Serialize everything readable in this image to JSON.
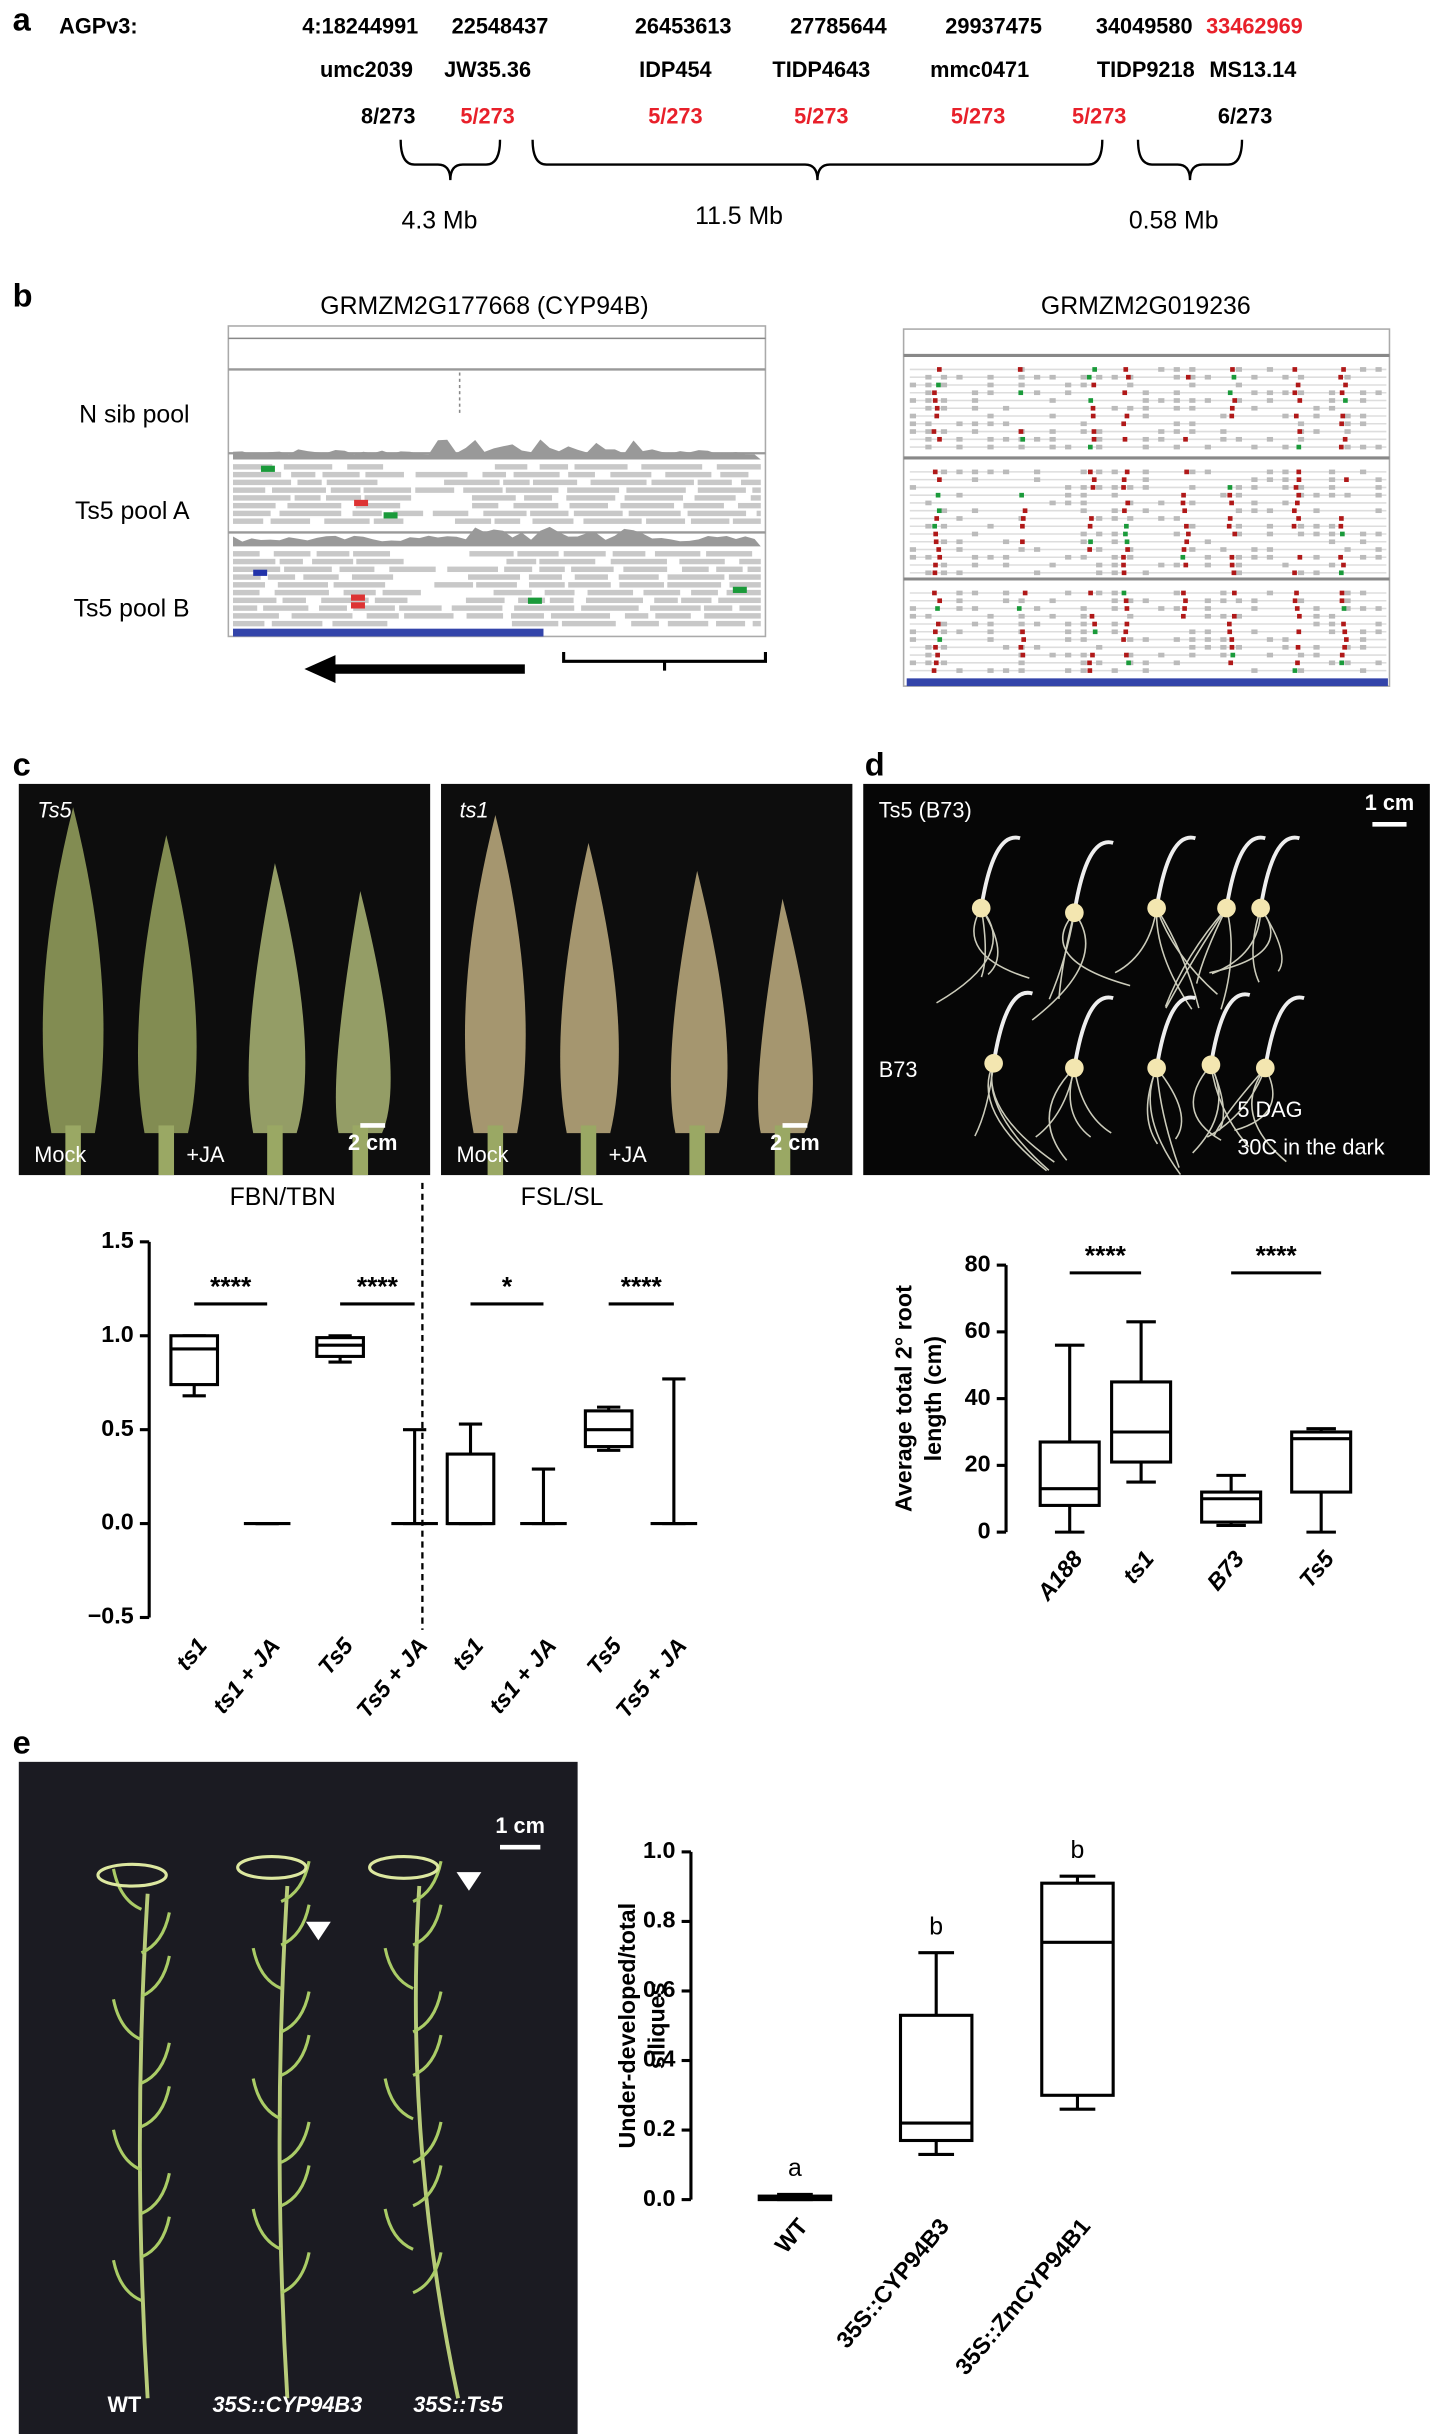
{
  "panel_a": {
    "label": "a",
    "assembly": "AGPv3:",
    "markers": [
      {
        "position": "4:18244991",
        "name": "umc2039",
        "recombinants": "8/273",
        "position_color": "#000000",
        "recombinants_color": "#000000"
      },
      {
        "position": "22548437",
        "name": "JW35.36",
        "recombinants": "5/273",
        "position_color": "#000000",
        "recombinants_color": "#e8202a"
      },
      {
        "position": "26453613",
        "name": "IDP454",
        "recombinants": "5/273",
        "position_color": "#000000",
        "recombinants_color": "#e8202a"
      },
      {
        "position": "27785644",
        "name": "TIDP4643",
        "recombinants": "5/273",
        "position_color": "#000000",
        "recombinants_color": "#e8202a"
      },
      {
        "position": "29937475",
        "name": "mmc0471",
        "recombinants": "5/273",
        "position_color": "#000000",
        "recombinants_color": "#e8202a"
      },
      {
        "position": "34049580",
        "name": "TIDP9218",
        "recombinants": "5/273",
        "position_color": "#000000",
        "recombinants_color": "#e8202a"
      },
      {
        "position": "33462969",
        "name": "MS13.14",
        "recombinants": "6/273",
        "position_color": "#e8202a",
        "recombinants_color": "#000000"
      }
    ],
    "intervals": [
      "4.3 Mb",
      "11.5 Mb",
      "0.58 Mb"
    ]
  },
  "panel_b": {
    "label": "b",
    "genes": [
      "GRMZM2G177668 (CYP94B)",
      "GRMZM2G019236"
    ],
    "tracks": [
      "N sib pool",
      "Ts5 pool A",
      "Ts5 pool B"
    ]
  },
  "panel_c": {
    "label": "c",
    "photos": [
      {
        "genotype": "Ts5",
        "treatments": [
          "Mock",
          "+JA"
        ],
        "scale_bar": "2 cm"
      },
      {
        "genotype": "ts1",
        "treatments": [
          "Mock",
          "+JA"
        ],
        "scale_bar": "2 cm"
      }
    ]
  },
  "panel_d": {
    "label": "d",
    "photo": {
      "genotype": "Ts5 (B73)",
      "scale_bar": "1 cm",
      "control": "B73",
      "notes": [
        "5 DAG",
        "30C in the dark"
      ]
    }
  },
  "panel_e": {
    "label": "e",
    "photo": {
      "scale_bar": "1 cm",
      "plants": [
        "WT",
        "35S::CYP94B3",
        "35S::Ts5"
      ]
    }
  },
  "chart_data": [
    {
      "type": "box",
      "ylim": [
        -0.5,
        1.5
      ],
      "yticks": [
        {
          "value": -0.5,
          "label": "−0.5"
        },
        {
          "value": 0,
          "label": "0.0"
        },
        0.5,
        {
          "value": 1,
          "label": "1.0"
        },
        1.5
      ],
      "groups": [
        {
          "title": "FBN/TBN",
          "categories": [
            "ts1",
            "ts1 + JA",
            "Ts5",
            "Ts5 + JA"
          ],
          "values": [
            {
              "min": 0.68,
              "q1": 0.74,
              "median": 0.93,
              "q3": 1.0,
              "max": 1.0
            },
            {
              "min": 0,
              "q1": 0,
              "median": 0,
              "q3": 0,
              "max": 0
            },
            {
              "min": 0.86,
              "q1": 0.89,
              "median": 0.95,
              "q3": 0.99,
              "max": 1.0
            },
            {
              "min": 0,
              "q1": 0,
              "median": 0,
              "q3": 0,
              "max": 0.5
            }
          ],
          "significance": [
            {
              "label": "****",
              "between": [
                "ts1",
                "ts1 + JA"
              ]
            },
            {
              "label": "****",
              "between": [
                "Ts5",
                "Ts5 + JA"
              ]
            }
          ]
        },
        {
          "title": "FSL/SL",
          "categories": [
            "ts1",
            "ts1 + JA",
            "Ts5",
            "Ts5 + JA"
          ],
          "values": [
            {
              "min": 0,
              "q1": 0,
              "median": 0,
              "q3": 0.37,
              "max": 0.53
            },
            {
              "min": 0,
              "q1": 0,
              "median": 0,
              "q3": 0,
              "max": 0.29
            },
            {
              "min": 0.39,
              "q1": 0.41,
              "median": 0.5,
              "q3": 0.6,
              "max": 0.62
            },
            {
              "min": 0,
              "q1": 0,
              "median": 0,
              "q3": 0,
              "max": 0.77
            }
          ],
          "significance": [
            {
              "label": "*",
              "between": [
                "ts1",
                "ts1 + JA"
              ]
            },
            {
              "label": "****",
              "between": [
                "Ts5",
                "Ts5 + JA"
              ]
            }
          ]
        }
      ]
    },
    {
      "type": "box",
      "ylabel_lines": [
        "Average total 2° root",
        "length (cm)"
      ],
      "ylim": [
        0,
        80
      ],
      "yticks": [
        0,
        20,
        40,
        60,
        80
      ],
      "categories": [
        "A188",
        "ts1",
        "B73",
        "Ts5"
      ],
      "values": [
        {
          "min": 0,
          "q1": 8,
          "median": 13,
          "q3": 27,
          "max": 56
        },
        {
          "min": 15,
          "q1": 21,
          "median": 30,
          "q3": 45,
          "max": 63
        },
        {
          "min": 2,
          "q1": 3,
          "median": 10,
          "q3": 12,
          "max": 17
        },
        {
          "min": 0,
          "q1": 12,
          "median": 28,
          "q3": 30,
          "max": 31
        }
      ],
      "significance": [
        {
          "label": "****",
          "between": [
            "A188",
            "ts1"
          ]
        },
        {
          "label": "****",
          "between": [
            "B73",
            "Ts5"
          ]
        }
      ]
    },
    {
      "type": "box",
      "ylabel_lines": [
        "Under-developed/total",
        "siliques"
      ],
      "ylim": [
        0,
        1
      ],
      "yticks": [
        {
          "value": 0,
          "label": "0.0"
        },
        0.2,
        0.4,
        0.6,
        0.8,
        {
          "value": 1,
          "label": "1.0"
        }
      ],
      "categories": [
        "WT",
        "35S::CYP94B3",
        "35S::ZmCYP94B1"
      ],
      "values": [
        {
          "min": 0,
          "q1": 0,
          "median": 0.005,
          "q3": 0.01,
          "max": 0.015
        },
        {
          "min": 0.13,
          "q1": 0.17,
          "median": 0.22,
          "q3": 0.53,
          "max": 0.71
        },
        {
          "min": 0.26,
          "q1": 0.3,
          "median": 0.74,
          "q3": 0.91,
          "max": 0.93
        }
      ],
      "letters": [
        "a",
        "b",
        "b"
      ]
    }
  ]
}
